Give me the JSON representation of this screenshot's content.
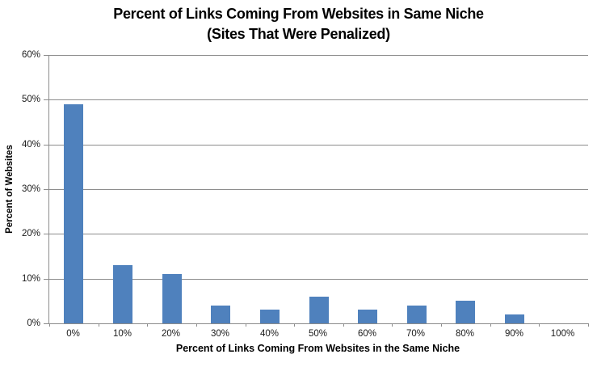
{
  "chart_data": {
    "type": "bar",
    "title": "Percent of Links Coming From Websites in Same Niche",
    "subtitle": "(Sites That Were Penalized)",
    "xlabel": "Percent of Links Coming From Websites in the Same Niche",
    "ylabel": "Percent of Websites",
    "categories": [
      "0%",
      "10%",
      "20%",
      "30%",
      "40%",
      "50%",
      "60%",
      "70%",
      "80%",
      "90%",
      "100%"
    ],
    "values": [
      49,
      13,
      11,
      4,
      3,
      6,
      3,
      4,
      5,
      2,
      0
    ],
    "ylim": [
      0,
      60
    ],
    "yticks": [
      0,
      10,
      20,
      30,
      40,
      50,
      60
    ],
    "ytick_labels": [
      "0%",
      "10%",
      "20%",
      "30%",
      "40%",
      "50%",
      "60%"
    ],
    "grid": "horizontal",
    "legend": "none",
    "bar_color": "#4F81BD",
    "gridline_color": "#8C8C8C",
    "axis_color": "#8C8C8C",
    "title_color": "#000000",
    "tick_label_color": "#1A1A1A"
  }
}
